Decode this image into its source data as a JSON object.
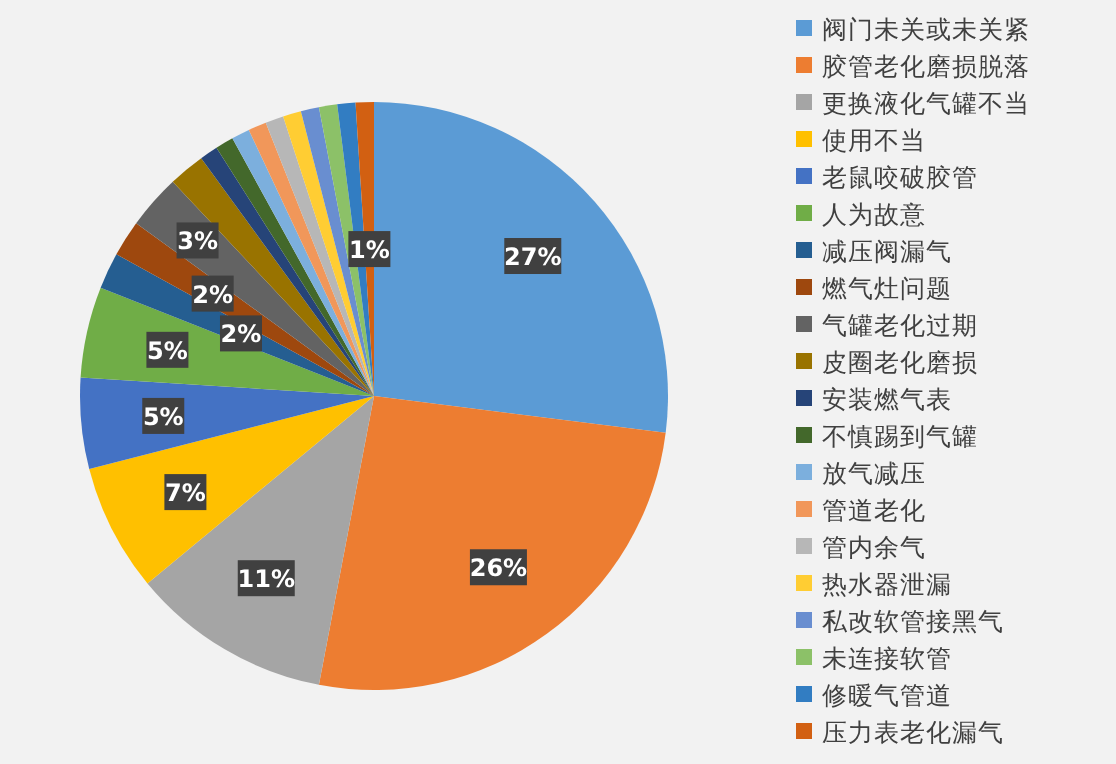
{
  "chart_data": {
    "type": "pie",
    "categories": [
      "阀门未关或未关紧",
      "胶管老化磨损脱落",
      "更换液化气罐不当",
      "使用不当",
      "老鼠咬破胶管",
      "人为故意",
      "减压阀漏气",
      "燃气灶问题",
      "气罐老化过期",
      "皮圈老化磨损",
      "安装燃气表",
      "不慎踢到气罐",
      "放气减压",
      "管道老化",
      "管内余气",
      "热水器泄漏",
      "私改软管接黑气",
      "未连接软管",
      "修暖气管道",
      "压力表老化漏气"
    ],
    "values": [
      27,
      26,
      11,
      7,
      5,
      5,
      2,
      2,
      3,
      2,
      1,
      1,
      1,
      1,
      1,
      1,
      1,
      1,
      1,
      1
    ],
    "colors": [
      "#5b9bd5",
      "#ed7d31",
      "#a5a5a5",
      "#ffc000",
      "#4472c4",
      "#70ad47",
      "#255e91",
      "#9e480e",
      "#636363",
      "#997300",
      "#264478",
      "#43682b",
      "#7cafdd",
      "#f1975a",
      "#b7b7b7",
      "#ffcd33",
      "#698ed0",
      "#8cc168",
      "#327dc2",
      "#d26012"
    ],
    "value_labels": [
      "27%",
      "26%",
      "11%",
      "7%",
      "5%",
      "5%",
      "2%",
      "2%",
      "3%",
      null,
      null,
      null,
      null,
      null,
      null,
      null,
      null,
      null,
      null,
      "1%"
    ],
    "legend": "right"
  }
}
